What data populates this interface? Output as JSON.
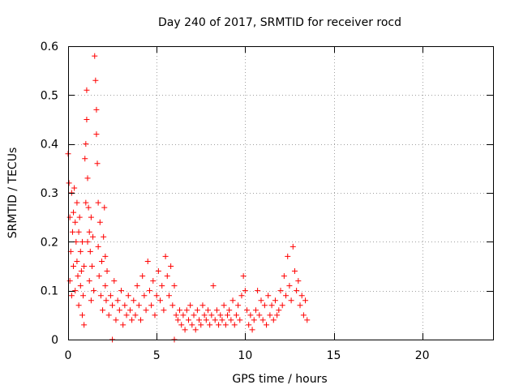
{
  "chart_data": {
    "type": "scatter",
    "title": "Day 240 of 2017, SRMTID for receiver rocd",
    "xlabel": "GPS time / hours",
    "ylabel": "SRMTID / TECUs",
    "xlim": [
      0,
      24
    ],
    "ylim": [
      0,
      0.6
    ],
    "xticks": [
      "0",
      "5",
      "10",
      "15",
      "20"
    ],
    "xtick_values": [
      0,
      5,
      10,
      15,
      20
    ],
    "yticks": [
      "0",
      "0.1",
      "0.2",
      "0.3",
      "0.4",
      "0.5",
      "0.6"
    ],
    "ytick_values": [
      0,
      0.1,
      0.2,
      0.3,
      0.4,
      0.5,
      0.6
    ],
    "grid": true,
    "marker": "plus",
    "series": [
      {
        "name": "SRMTID",
        "color": "#ff0000",
        "points": [
          [
            0.0,
            0.38
          ],
          [
            0.05,
            0.32
          ],
          [
            0.1,
            0.25
          ],
          [
            0.1,
            0.12
          ],
          [
            0.15,
            0.18
          ],
          [
            0.2,
            0.3
          ],
          [
            0.2,
            0.09
          ],
          [
            0.25,
            0.22
          ],
          [
            0.3,
            0.26
          ],
          [
            0.3,
            0.15
          ],
          [
            0.35,
            0.31
          ],
          [
            0.4,
            0.24
          ],
          [
            0.4,
            0.1
          ],
          [
            0.45,
            0.2
          ],
          [
            0.5,
            0.28
          ],
          [
            0.5,
            0.16
          ],
          [
            0.55,
            0.13
          ],
          [
            0.6,
            0.22
          ],
          [
            0.6,
            0.07
          ],
          [
            0.65,
            0.25
          ],
          [
            0.7,
            0.18
          ],
          [
            0.7,
            0.11
          ],
          [
            0.75,
            0.14
          ],
          [
            0.8,
            0.2
          ],
          [
            0.8,
            0.05
          ],
          [
            0.85,
            0.09
          ],
          [
            0.9,
            0.15
          ],
          [
            0.9,
            0.03
          ],
          [
            0.95,
            0.37
          ],
          [
            1.0,
            0.4
          ],
          [
            1.0,
            0.28
          ],
          [
            1.05,
            0.51
          ],
          [
            1.05,
            0.45
          ],
          [
            1.1,
            0.33
          ],
          [
            1.1,
            0.2
          ],
          [
            1.15,
            0.27
          ],
          [
            1.2,
            0.22
          ],
          [
            1.2,
            0.12
          ],
          [
            1.25,
            0.18
          ],
          [
            1.3,
            0.25
          ],
          [
            1.3,
            0.08
          ],
          [
            1.35,
            0.15
          ],
          [
            1.4,
            0.21
          ],
          [
            1.45,
            0.1
          ],
          [
            1.5,
            0.58
          ],
          [
            1.55,
            0.53
          ],
          [
            1.6,
            0.47
          ],
          [
            1.6,
            0.42
          ],
          [
            1.65,
            0.36
          ],
          [
            1.7,
            0.28
          ],
          [
            1.7,
            0.19
          ],
          [
            1.75,
            0.13
          ],
          [
            1.8,
            0.24
          ],
          [
            1.85,
            0.09
          ],
          [
            1.9,
            0.16
          ],
          [
            1.95,
            0.06
          ],
          [
            2.0,
            0.21
          ],
          [
            2.05,
            0.27
          ],
          [
            2.1,
            0.17
          ],
          [
            2.1,
            0.11
          ],
          [
            2.15,
            0.08
          ],
          [
            2.2,
            0.14
          ],
          [
            2.3,
            0.05
          ],
          [
            2.4,
            0.09
          ],
          [
            2.5,
            0.07
          ],
          [
            2.6,
            0.12
          ],
          [
            2.7,
            0.04
          ],
          [
            2.8,
            0.08
          ],
          [
            2.9,
            0.06
          ],
          [
            3.0,
            0.1
          ],
          [
            3.1,
            0.03
          ],
          [
            3.2,
            0.07
          ],
          [
            3.3,
            0.05
          ],
          [
            3.4,
            0.09
          ],
          [
            3.5,
            0.06
          ],
          [
            3.6,
            0.04
          ],
          [
            3.7,
            0.08
          ],
          [
            3.8,
            0.05
          ],
          [
            3.9,
            0.11
          ],
          [
            4.0,
            0.07
          ],
          [
            4.1,
            0.04
          ],
          [
            4.2,
            0.13
          ],
          [
            4.3,
            0.09
          ],
          [
            4.4,
            0.06
          ],
          [
            4.5,
            0.16
          ],
          [
            4.6,
            0.1
          ],
          [
            4.7,
            0.07
          ],
          [
            4.8,
            0.12
          ],
          [
            4.9,
            0.05
          ],
          [
            5.0,
            0.09
          ],
          [
            5.1,
            0.14
          ],
          [
            5.2,
            0.08
          ],
          [
            5.3,
            0.11
          ],
          [
            5.4,
            0.06
          ],
          [
            5.5,
            0.17
          ],
          [
            5.6,
            0.13
          ],
          [
            5.7,
            0.09
          ],
          [
            5.8,
            0.15
          ],
          [
            5.9,
            0.07
          ],
          [
            6.0,
            0.11
          ],
          [
            6.1,
            0.05
          ],
          [
            6.2,
            0.04
          ],
          [
            6.3,
            0.06
          ],
          [
            6.4,
            0.03
          ],
          [
            6.5,
            0.05
          ],
          [
            6.6,
            0.02
          ],
          [
            6.7,
            0.06
          ],
          [
            6.8,
            0.04
          ],
          [
            6.9,
            0.07
          ],
          [
            7.0,
            0.03
          ],
          [
            7.1,
            0.05
          ],
          [
            7.2,
            0.02
          ],
          [
            7.3,
            0.06
          ],
          [
            7.4,
            0.04
          ],
          [
            7.5,
            0.03
          ],
          [
            7.6,
            0.07
          ],
          [
            7.7,
            0.05
          ],
          [
            7.8,
            0.04
          ],
          [
            7.9,
            0.06
          ],
          [
            8.0,
            0.03
          ],
          [
            8.1,
            0.05
          ],
          [
            8.2,
            0.11
          ],
          [
            8.3,
            0.04
          ],
          [
            8.4,
            0.06
          ],
          [
            8.5,
            0.03
          ],
          [
            8.6,
            0.05
          ],
          [
            8.7,
            0.04
          ],
          [
            8.8,
            0.07
          ],
          [
            8.9,
            0.03
          ],
          [
            9.0,
            0.05
          ],
          [
            9.1,
            0.06
          ],
          [
            9.2,
            0.04
          ],
          [
            9.3,
            0.08
          ],
          [
            9.4,
            0.03
          ],
          [
            9.5,
            0.05
          ],
          [
            9.6,
            0.07
          ],
          [
            9.7,
            0.04
          ],
          [
            9.8,
            0.09
          ],
          [
            9.9,
            0.13
          ],
          [
            10.0,
            0.1
          ],
          [
            10.1,
            0.06
          ],
          [
            10.2,
            0.03
          ],
          [
            10.3,
            0.05
          ],
          [
            10.4,
            0.02
          ],
          [
            10.5,
            0.04
          ],
          [
            10.6,
            0.06
          ],
          [
            10.7,
            0.1
          ],
          [
            10.8,
            0.05
          ],
          [
            10.9,
            0.08
          ],
          [
            11.0,
            0.04
          ],
          [
            11.1,
            0.07
          ],
          [
            11.2,
            0.03
          ],
          [
            11.3,
            0.09
          ],
          [
            11.4,
            0.05
          ],
          [
            11.5,
            0.07
          ],
          [
            11.6,
            0.04
          ],
          [
            11.7,
            0.08
          ],
          [
            11.8,
            0.05
          ],
          [
            11.9,
            0.06
          ],
          [
            12.0,
            0.1
          ],
          [
            12.1,
            0.07
          ],
          [
            12.2,
            0.13
          ],
          [
            12.3,
            0.09
          ],
          [
            12.4,
            0.17
          ],
          [
            12.5,
            0.11
          ],
          [
            12.6,
            0.08
          ],
          [
            12.7,
            0.19
          ],
          [
            12.8,
            0.14
          ],
          [
            12.9,
            0.1
          ],
          [
            13.0,
            0.12
          ],
          [
            13.1,
            0.07
          ],
          [
            13.2,
            0.09
          ],
          [
            13.3,
            0.05
          ],
          [
            13.4,
            0.08
          ],
          [
            13.5,
            0.04
          ],
          [
            2.5,
            0.0
          ],
          [
            6.0,
            0.0
          ]
        ]
      }
    ]
  }
}
